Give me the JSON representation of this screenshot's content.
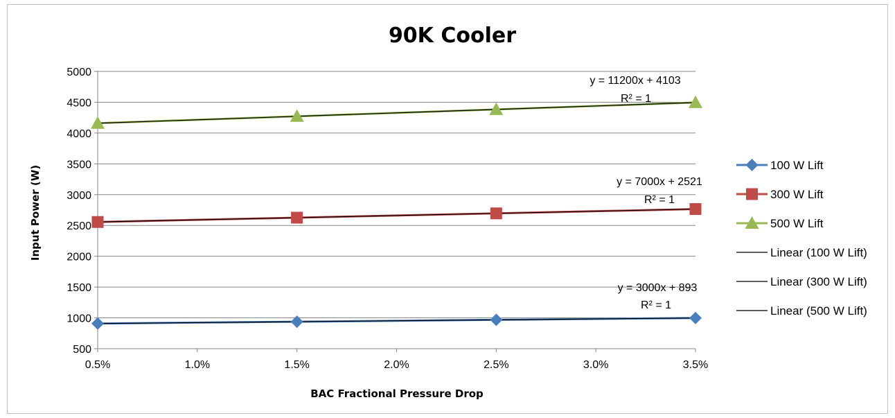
{
  "chart_data": {
    "type": "line",
    "title": "90K Cooler",
    "xlabel": "BAC Fractional Pressure Drop",
    "ylabel": "Input Power (W)",
    "x": [
      0.005,
      0.015,
      0.025,
      0.035
    ],
    "xlim": [
      0.005,
      0.035
    ],
    "ylim": [
      500,
      5000
    ],
    "x_ticks": [
      "0.5%",
      "1.0%",
      "1.5%",
      "2.0%",
      "2.5%",
      "3.0%",
      "3.5%"
    ],
    "y_ticks": [
      "500",
      "1000",
      "1500",
      "2000",
      "2500",
      "3000",
      "3500",
      "4000",
      "4500",
      "5000"
    ],
    "grid": "horizontal",
    "legend_position": "right",
    "series": [
      {
        "name": "100 W Lift",
        "color": "#4a7ebb",
        "marker": "diamond",
        "values": [
          908,
          938,
          968,
          998
        ]
      },
      {
        "name": "300 W Lift",
        "color": "#be4b48",
        "marker": "square",
        "values": [
          2556,
          2626,
          2696,
          2766
        ]
      },
      {
        "name": "500 W Lift",
        "color": "#98b954",
        "marker": "triangle",
        "values": [
          4159,
          4271,
          4383,
          4495
        ]
      }
    ],
    "trendlines": [
      {
        "name": "Linear (100 W Lift)",
        "slope": 3000,
        "intercept": 893,
        "equation": "y = 3000x + 893",
        "r2": "R² = 1",
        "color": "#000000"
      },
      {
        "name": "Linear (300 W Lift)",
        "slope": 7000,
        "intercept": 2521,
        "equation": "y = 7000x + 2521",
        "r2": "R² = 1",
        "color": "#000000"
      },
      {
        "name": "Linear (500 W Lift)",
        "slope": 11200,
        "intercept": 4103,
        "equation": "y = 11200x + 4103",
        "r2": "R² = 1",
        "color": "#000000"
      }
    ]
  }
}
